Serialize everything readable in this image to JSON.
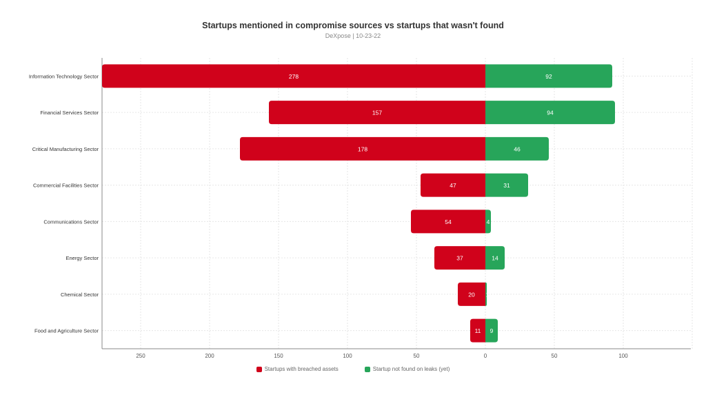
{
  "chart_data": {
    "type": "bar",
    "orientation": "horizontal-diverging",
    "title": "Startups mentioned in compromise sources vs startups that wasn't found",
    "subtitle": "DeXpose | 10-23-22",
    "categories": [
      "Information Technology Sector",
      "Financial Services Sector",
      "Critical Manufacturing Sector",
      "Commercial Facilities Sector",
      "Communications Sector",
      "Energy Sector",
      "Chemical Sector",
      "Food and Agriculture Sector"
    ],
    "series": [
      {
        "name": "Startups with breached assets",
        "color": "#d0021b",
        "direction": "left",
        "values": [
          278,
          157,
          178,
          47,
          54,
          37,
          20,
          11
        ]
      },
      {
        "name": "Startup not found on leaks (yet)",
        "color": "#27a55a",
        "direction": "right",
        "values": [
          92,
          94,
          46,
          31,
          4,
          14,
          1,
          9
        ]
      }
    ],
    "xlim": [
      -278,
      150
    ],
    "x_ticks": [
      {
        "value": -250,
        "label": "250"
      },
      {
        "value": -200,
        "label": "200"
      },
      {
        "value": -150,
        "label": "150"
      },
      {
        "value": -100,
        "label": "100"
      },
      {
        "value": -50,
        "label": "50"
      },
      {
        "value": 0,
        "label": "0"
      },
      {
        "value": 50,
        "label": "50"
      },
      {
        "value": 100,
        "label": "100"
      }
    ],
    "grid": true,
    "legend_position": "bottom-center"
  }
}
